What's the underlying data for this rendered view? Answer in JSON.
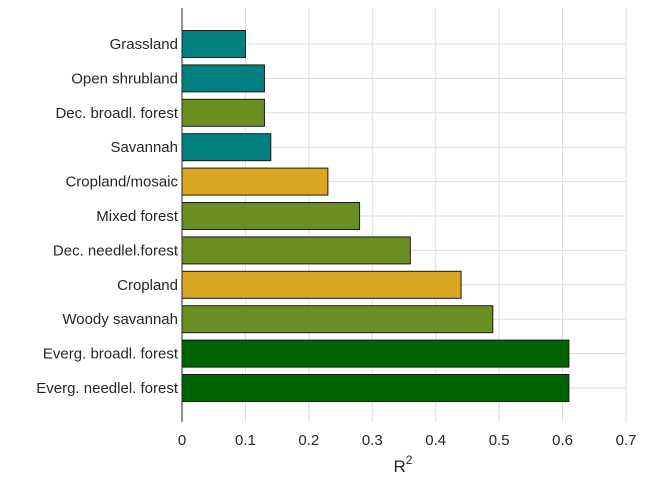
{
  "chart_data": {
    "type": "bar",
    "orientation": "horizontal",
    "categories": [
      "Grassland",
      "Open shrubland",
      "Dec. broadl. forest",
      "Savannah",
      "Cropland/mosaic",
      "Mixed forest",
      "Dec. needlel.forest",
      "Cropland",
      "Woody savannah",
      "Everg. broadl. forest",
      "Everg. needlel. forest"
    ],
    "values": [
      0.1,
      0.13,
      0.13,
      0.14,
      0.23,
      0.28,
      0.36,
      0.44,
      0.49,
      0.61,
      0.61
    ],
    "bar_colors": [
      "#008080",
      "#008080",
      "#6b8e23",
      "#008080",
      "#daa520",
      "#6b8e23",
      "#6b8e23",
      "#daa520",
      "#6b8e23",
      "#006400",
      "#006400"
    ],
    "xlabel": "R",
    "xlabel_superscript": "2",
    "ylabel": "",
    "title": "",
    "xlim": [
      0,
      0.7
    ],
    "xticks": [
      0,
      0.1,
      0.2,
      0.3,
      0.4,
      0.5,
      0.6,
      0.7
    ],
    "xtick_labels": [
      "0",
      "0.1",
      "0.2",
      "0.3",
      "0.4",
      "0.5",
      "0.6",
      "0.7"
    ],
    "grid": true,
    "grid_color": "#dedede",
    "axis_color": "#262626",
    "bar_edge_color": "#1a1a1a"
  }
}
